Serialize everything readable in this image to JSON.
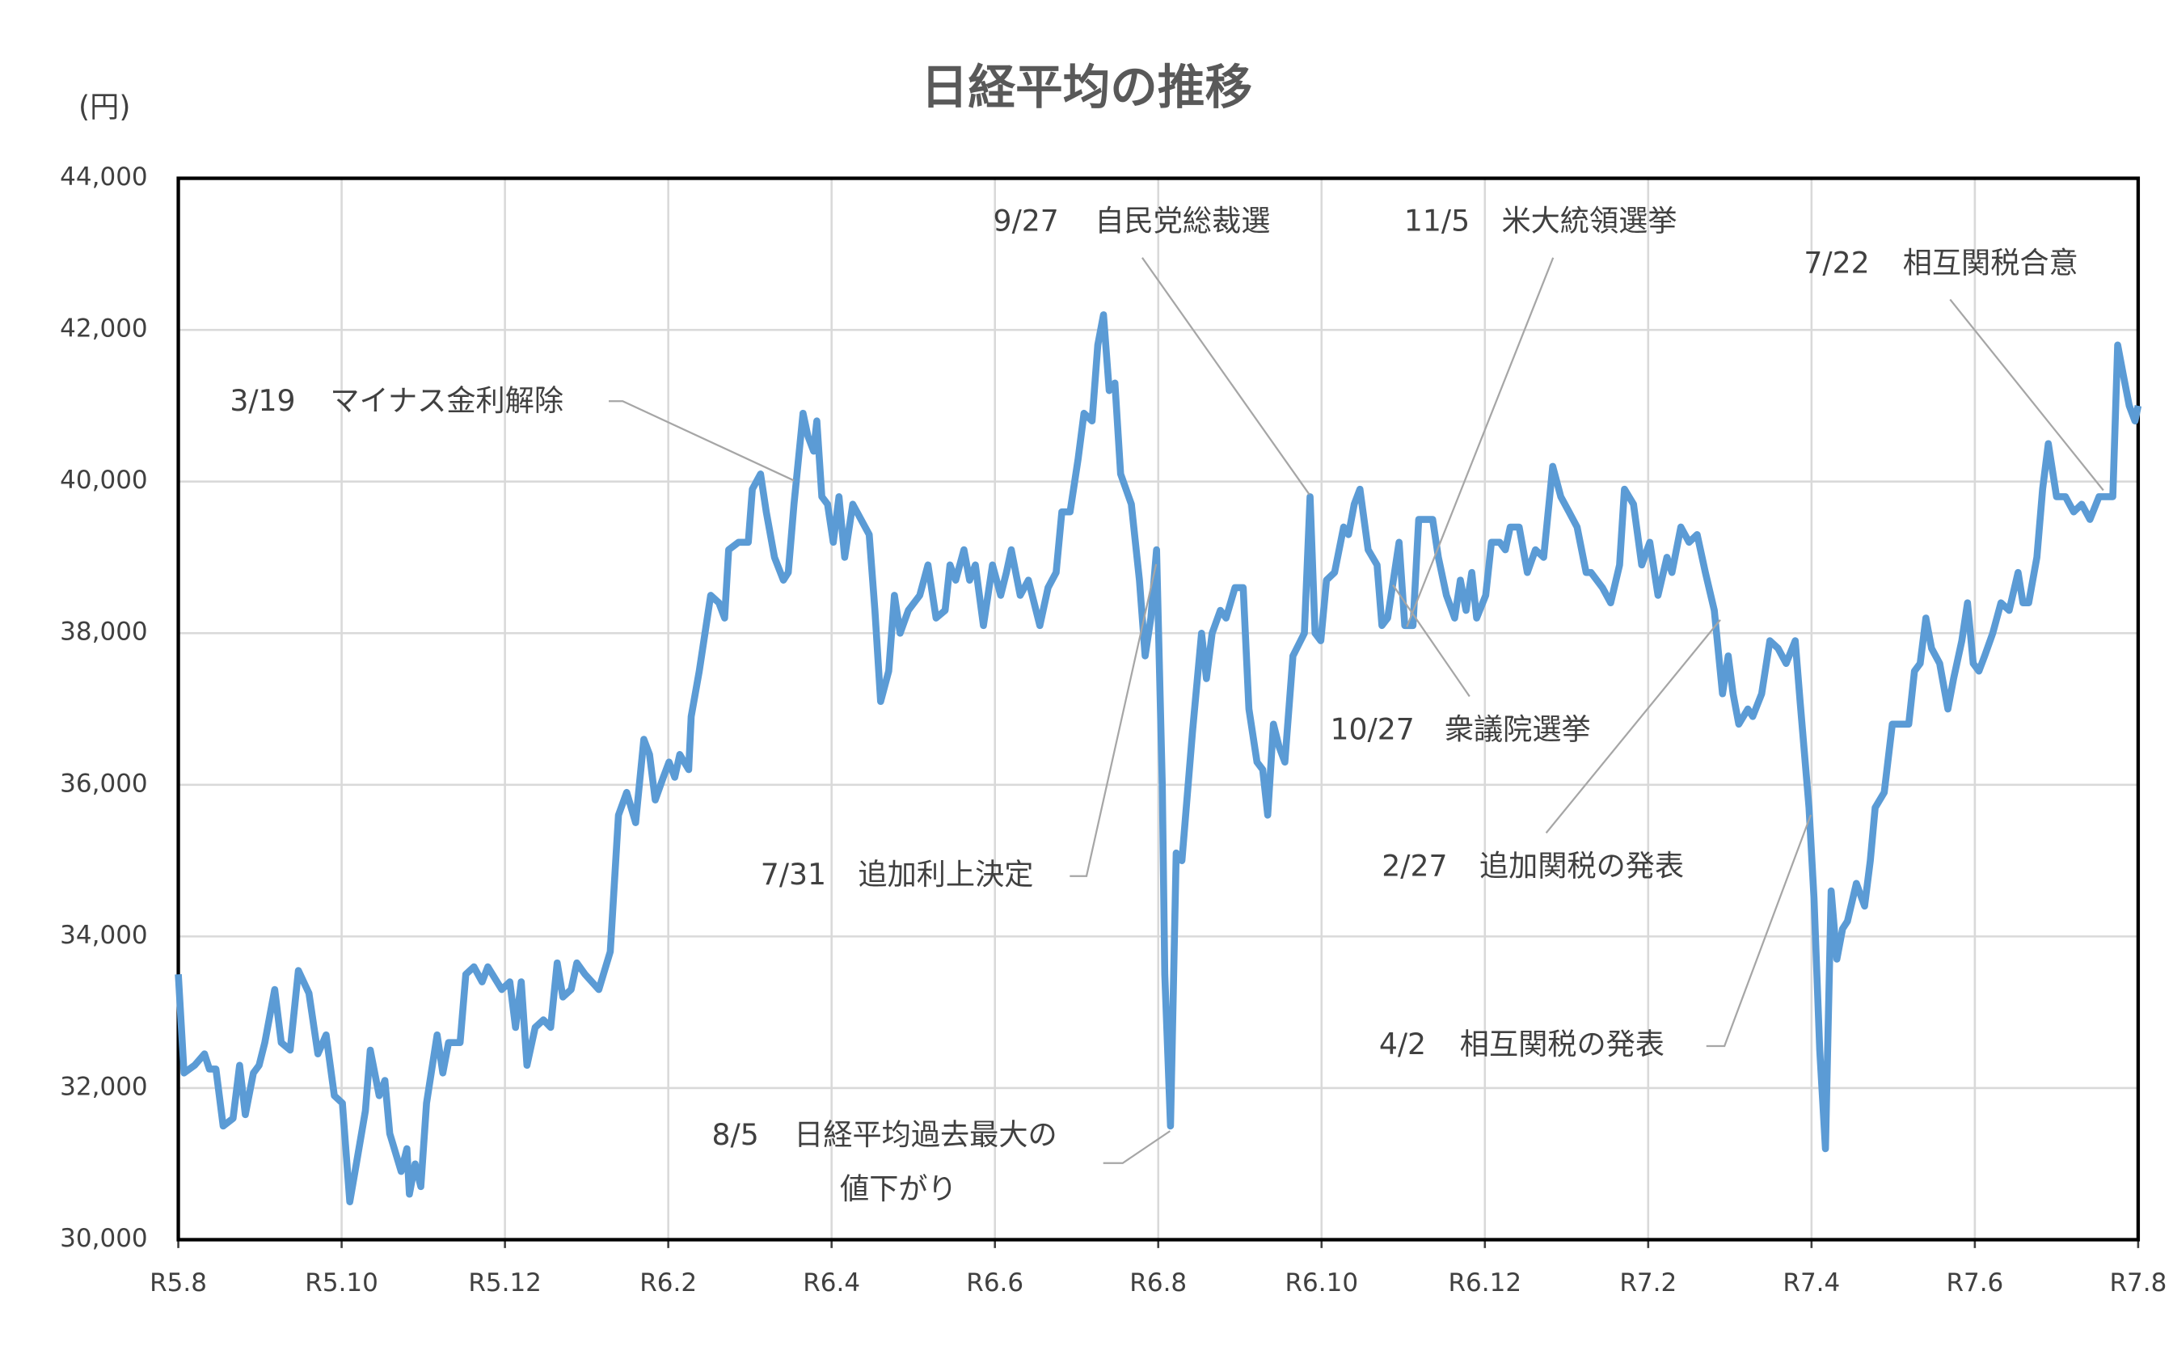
{
  "chart_data": {
    "type": "line",
    "title": "日経平均の推移",
    "y_unit": "(円)",
    "color": "#5b9bd5",
    "grid": true,
    "xlim": [
      0,
      24
    ],
    "ylim": [
      30000,
      44000
    ],
    "xticks": [
      {
        "value": 0,
        "label": "R5.8"
      },
      {
        "value": 2,
        "label": "R5.10"
      },
      {
        "value": 4,
        "label": "R5.12"
      },
      {
        "value": 6,
        "label": "R6.2"
      },
      {
        "value": 8,
        "label": "R6.4"
      },
      {
        "value": 10,
        "label": "R6.6"
      },
      {
        "value": 12,
        "label": "R6.8"
      },
      {
        "value": 14,
        "label": "R6.10"
      },
      {
        "value": 16,
        "label": "R6.12"
      },
      {
        "value": 18,
        "label": "R7.2"
      },
      {
        "value": 20,
        "label": "R7.4"
      },
      {
        "value": 22,
        "label": "R7.6"
      },
      {
        "value": 24,
        "label": "R7.8"
      }
    ],
    "yticks": [
      {
        "value": 30000,
        "label": "30,000"
      },
      {
        "value": 32000,
        "label": "32,000"
      },
      {
        "value": 34000,
        "label": "34,000"
      },
      {
        "value": 36000,
        "label": "36,000"
      },
      {
        "value": 38000,
        "label": "38,000"
      },
      {
        "value": 40000,
        "label": "40,000"
      },
      {
        "value": 42000,
        "label": "42,000"
      },
      {
        "value": 44000,
        "label": "44,000"
      }
    ],
    "x": [
      0,
      0.07,
      0.2,
      0.32,
      0.38,
      0.46,
      0.55,
      0.67,
      0.75,
      0.82,
      0.92,
      0.99,
      1.06,
      1.18,
      1.26,
      1.37,
      1.47,
      1.6,
      1.71,
      1.81,
      1.91,
      2.01,
      2.1,
      2.18,
      2.29,
      2.35,
      2.46,
      2.53,
      2.59,
      2.73,
      2.8,
      2.83,
      2.9,
      2.97,
      3.04,
      3.17,
      3.24,
      3.31,
      3.45,
      3.52,
      3.62,
      3.72,
      3.79,
      3.96,
      4.06,
      4.13,
      4.2,
      4.27,
      4.37,
      4.47,
      4.56,
      4.64,
      4.71,
      4.81,
      4.88,
      4.98,
      5.15,
      5.29,
      5.39,
      5.49,
      5.6,
      5.7,
      5.77,
      5.84,
      5.94,
      6.01,
      6.08,
      6.14,
      6.25,
      6.28,
      6.38,
      6.45,
      6.52,
      6.62,
      6.69,
      6.74,
      6.86,
      6.98,
      7.03,
      7.13,
      7.2,
      7.3,
      7.41,
      7.47,
      7.54,
      7.65,
      7.71,
      7.78,
      7.82,
      7.88,
      7.95,
      8.02,
      8.09,
      8.16,
      8.26,
      8.36,
      8.46,
      8.53,
      8.6,
      8.7,
      8.77,
      8.84,
      8.94,
      9.08,
      9.18,
      9.28,
      9.39,
      9.45,
      9.52,
      9.62,
      9.69,
      9.76,
      9.86,
      9.97,
      10.07,
      10.14,
      10.2,
      10.31,
      10.41,
      10.55,
      10.65,
      10.75,
      10.82,
      10.92,
      11.02,
      11.09,
      11.19,
      11.26,
      11.33,
      11.4,
      11.47,
      11.54,
      11.67,
      11.77,
      11.84,
      11.91,
      11.98,
      12.05,
      12.08,
      12.15,
      12.22,
      12.29,
      12.42,
      12.53,
      12.59,
      12.66,
      12.76,
      12.83,
      12.94,
      13.04,
      13.11,
      13.21,
      13.28,
      13.34,
      13.41,
      13.48,
      13.55,
      13.65,
      13.79,
      13.86,
      13.92,
      13.99,
      14.06,
      14.16,
      14.27,
      14.33,
      14.4,
      14.47,
      14.57,
      14.68,
      14.74,
      14.81,
      14.88,
      14.95,
      15.02,
      15.12,
      15.19,
      15.29,
      15.36,
      15.43,
      15.53,
      15.63,
      15.7,
      15.77,
      15.84,
      15.9,
      16.01,
      16.08,
      16.18,
      16.25,
      16.31,
      16.42,
      16.52,
      16.62,
      16.72,
      16.83,
      16.93,
      17.03,
      17.13,
      17.24,
      17.3,
      17.44,
      17.54,
      17.65,
      17.71,
      17.82,
      17.92,
      18.02,
      18.12,
      18.23,
      18.29,
      18.4,
      18.5,
      18.6,
      18.7,
      18.81,
      18.91,
      18.98,
      19.04,
      19.11,
      19.22,
      19.28,
      19.39,
      19.49,
      19.59,
      19.69,
      19.8,
      19.86,
      19.97,
      20.03,
      20.1,
      20.17,
      20.24,
      20.31,
      20.38,
      20.44,
      20.55,
      20.65,
      20.72,
      20.78,
      20.89,
      20.99,
      21.09,
      21.19,
      21.26,
      21.33,
      21.4,
      21.47,
      21.57,
      21.67,
      21.74,
      21.84,
      21.91,
      21.98,
      22.05,
      22.12,
      22.22,
      22.32,
      22.42,
      22.53,
      22.59,
      22.66,
      22.76,
      22.83,
      22.9,
      23.0,
      23.11,
      23.21,
      23.31,
      23.41,
      23.52,
      23.62,
      23.69,
      23.75,
      23.82,
      23.89,
      23.96,
      24
    ],
    "values": [
      33500,
      32200,
      32300,
      32450,
      32250,
      32250,
      31500,
      31600,
      32300,
      31650,
      32200,
      32300,
      32600,
      33300,
      32600,
      32500,
      33550,
      33250,
      32450,
      32700,
      31900,
      31800,
      30500,
      31000,
      31700,
      32500,
      31900,
      32100,
      31400,
      30900,
      31200,
      30600,
      31000,
      30700,
      31800,
      32700,
      32200,
      32600,
      32600,
      33500,
      33600,
      33400,
      33600,
      33300,
      33400,
      32800,
      33400,
      32300,
      32800,
      32900,
      32800,
      33650,
      33200,
      33300,
      33650,
      33500,
      33300,
      33800,
      35600,
      35900,
      35500,
      36600,
      36400,
      35800,
      36100,
      36300,
      36100,
      36400,
      36200,
      36900,
      37500,
      38000,
      38500,
      38400,
      38200,
      39100,
      39200,
      39200,
      39900,
      40100,
      39600,
      39000,
      38700,
      38800,
      39700,
      40900,
      40600,
      40400,
      40800,
      39800,
      39700,
      39200,
      39800,
      39000,
      39700,
      39500,
      39300,
      38300,
      37100,
      37500,
      38500,
      38000,
      38300,
      38500,
      38900,
      38200,
      38300,
      38900,
      38700,
      39100,
      38700,
      38900,
      38100,
      38900,
      38500,
      38800,
      39100,
      38500,
      38700,
      38100,
      38600,
      38800,
      39600,
      39600,
      40300,
      40900,
      40800,
      41800,
      42200,
      41200,
      41300,
      40100,
      39700,
      38700,
      37700,
      38200,
      39100,
      36000,
      33500,
      31500,
      35100,
      35000,
      36700,
      38000,
      37400,
      38000,
      38300,
      38200,
      38600,
      38600,
      37000,
      36300,
      36200,
      35600,
      36800,
      36500,
      36300,
      37700,
      38000,
      39800,
      38000,
      37900,
      38700,
      38800,
      39400,
      39300,
      39700,
      39900,
      39100,
      38900,
      38100,
      38200,
      38700,
      39200,
      38100,
      38100,
      39500,
      39500,
      39500,
      39000,
      38500,
      38200,
      38700,
      38300,
      38800,
      38200,
      38500,
      39200,
      39200,
      39100,
      39400,
      39400,
      38800,
      39100,
      39000,
      40200,
      39800,
      39600,
      39400,
      38800,
      38800,
      38600,
      38400,
      38900,
      39900,
      39700,
      38900,
      39200,
      38500,
      39000,
      38800,
      39400,
      39200,
      39300,
      38800,
      38300,
      37200,
      37700,
      37200,
      36800,
      37000,
      36900,
      37200,
      37900,
      37800,
      37600,
      37900,
      37100,
      35700,
      34500,
      32500,
      31200,
      34600,
      33700,
      34100,
      34200,
      34700,
      34400,
      35000,
      35700,
      35900,
      36800,
      36800,
      36800,
      37500,
      37600,
      38200,
      37800,
      37600,
      37000,
      37400,
      37900,
      38400,
      37600,
      37500,
      37700,
      38000,
      38400,
      38300,
      38800,
      38400,
      38400,
      39000,
      39900,
      40500,
      39800,
      39800,
      39600,
      39700,
      39500,
      39800,
      39800,
      39800,
      41800,
      41400,
      41000,
      40800,
      41000
    ],
    "annotations": [
      {
        "date": "3/19",
        "label": [
          "マイナス金利解除"
        ]
      },
      {
        "date": "9/27",
        "label": [
          "自民党総裁選"
        ]
      },
      {
        "date": "11/5",
        "label": [
          "米大統領選挙"
        ]
      },
      {
        "date": "7/22",
        "label": [
          "相互関税合意"
        ]
      },
      {
        "date": "10/27",
        "label": [
          "衆議院選挙"
        ]
      },
      {
        "date": "7/31",
        "label": [
          "追加利上決定"
        ]
      },
      {
        "date": "2/27",
        "label": [
          "追加関税の発表"
        ]
      },
      {
        "date": "8/5",
        "label": [
          "日経平均過去最大の",
          "値下がり"
        ]
      },
      {
        "date": "4/2",
        "label": [
          "相互関税の発表"
        ]
      }
    ]
  }
}
